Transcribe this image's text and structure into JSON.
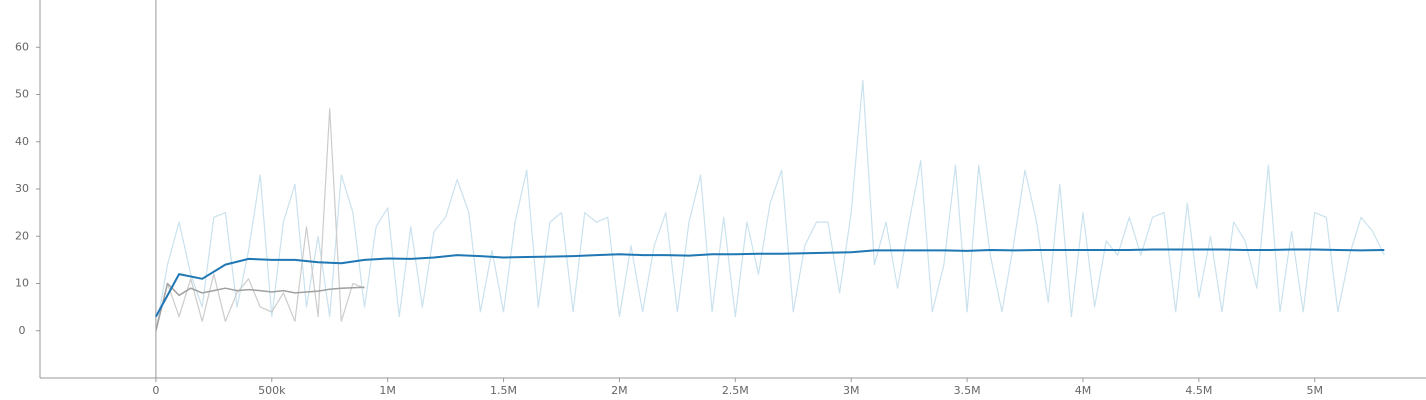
{
  "chart_data": {
    "type": "line",
    "xlim": [
      -500000,
      5480000
    ],
    "ylim": [
      -10,
      70
    ],
    "xticks": [
      0,
      {
        "value": 500000,
        "label": "500k"
      },
      {
        "value": 1000000,
        "label": "1M"
      },
      {
        "value": 1500000,
        "label": "1.5M"
      },
      {
        "value": 2000000,
        "label": "2M"
      },
      {
        "value": 2500000,
        "label": "2.5M"
      },
      {
        "value": 3000000,
        "label": "3M"
      },
      {
        "value": 3500000,
        "label": "3.5M"
      },
      {
        "value": 4000000,
        "label": "4M"
      },
      {
        "value": 4500000,
        "label": "4.5M"
      },
      {
        "value": 5000000,
        "label": "5M"
      }
    ],
    "yticks": [
      0,
      10,
      20,
      30,
      40,
      50,
      60
    ],
    "series": [
      {
        "color": "#a6cee3",
        "opacity": 0.6,
        "width": 1.2,
        "x": [
          0,
          50000,
          100000,
          150000,
          200000,
          250000,
          300000,
          350000,
          400000,
          450000,
          500000,
          550000,
          600000,
          650000,
          700000,
          750000,
          800000,
          850000,
          900000,
          950000,
          1000000,
          1050000,
          1100000,
          1150000,
          1200000,
          1250000,
          1300000,
          1350000,
          1400000,
          1450000,
          1500000,
          1550000,
          1600000,
          1650000,
          1700000,
          1750000,
          1800000,
          1850000,
          1900000,
          1950000,
          2000000,
          2050000,
          2100000,
          2150000,
          2200000,
          2250000,
          2300000,
          2350000,
          2400000,
          2450000,
          2500000,
          2550000,
          2600000,
          2650000,
          2700000,
          2750000,
          2800000,
          2850000,
          2900000,
          2950000,
          3000000,
          3050000,
          3100000,
          3150000,
          3200000,
          3250000,
          3300000,
          3350000,
          3400000,
          3450000,
          3500000,
          3550000,
          3600000,
          3650000,
          3700000,
          3750000,
          3800000,
          3850000,
          3900000,
          3950000,
          4000000,
          4050000,
          4100000,
          4150000,
          4200000,
          4250000,
          4300000,
          4350000,
          4400000,
          4450000,
          4500000,
          4550000,
          4600000,
          4650000,
          4700000,
          4750000,
          4800000,
          4850000,
          4900000,
          4950000,
          5000000,
          5050000,
          5100000,
          5150000,
          5200000,
          5250000,
          5300000
        ],
        "values": [
          0,
          14,
          23,
          12,
          5,
          24,
          25,
          5,
          17,
          33,
          3,
          23,
          31,
          5,
          20,
          3,
          33,
          25,
          5,
          22,
          26,
          3,
          22,
          5,
          21,
          24,
          32,
          25,
          4,
          17,
          4,
          23,
          34,
          5,
          23,
          25,
          4,
          25,
          23,
          24,
          3,
          18,
          4,
          18,
          25,
          4,
          23,
          33,
          4,
          24,
          3,
          23,
          12,
          27,
          34,
          4,
          18,
          23,
          23,
          8,
          25,
          53,
          14,
          23,
          9,
          23,
          36,
          4,
          14,
          35,
          4,
          35,
          16,
          4,
          18,
          34,
          23,
          6,
          31,
          3,
          25,
          5,
          19,
          16,
          24,
          16,
          24,
          25,
          4,
          27,
          7,
          20,
          4,
          23,
          19,
          9,
          35,
          4,
          21,
          4,
          25,
          24,
          4,
          16,
          24,
          21,
          16
        ]
      },
      {
        "color": "#cccccc",
        "opacity": 1,
        "width": 1.2,
        "x": [
          0,
          50000,
          100000,
          150000,
          200000,
          250000,
          300000,
          350000,
          400000,
          450000,
          500000,
          550000,
          600000,
          650000,
          700000,
          750000,
          800000,
          850000,
          900000
        ],
        "values": [
          0,
          10,
          3,
          11,
          2,
          12,
          2,
          8,
          11,
          5,
          4,
          8,
          2,
          22,
          3,
          47,
          2,
          10,
          9
        ]
      },
      {
        "color": "#a0a0a0",
        "opacity": 1,
        "width": 1.5,
        "x": [
          0,
          50000,
          100000,
          150000,
          200000,
          250000,
          300000,
          350000,
          400000,
          450000,
          500000,
          550000,
          600000,
          650000,
          700000,
          750000,
          800000,
          850000,
          900000
        ],
        "values": [
          0,
          10,
          7.5,
          9,
          8,
          8.5,
          9,
          8.5,
          8.7,
          8.5,
          8.2,
          8.5,
          8,
          8.2,
          8.4,
          8.8,
          9,
          9.1,
          9.2
        ]
      },
      {
        "color": "#1f77b4",
        "opacity": 1,
        "width": 2,
        "x": [
          0,
          100000,
          200000,
          300000,
          400000,
          500000,
          600000,
          700000,
          800000,
          900000,
          1000000,
          1100000,
          1200000,
          1300000,
          1400000,
          1500000,
          1600000,
          1700000,
          1800000,
          1900000,
          2000000,
          2100000,
          2200000,
          2300000,
          2400000,
          2500000,
          2600000,
          2700000,
          2800000,
          2900000,
          3000000,
          3100000,
          3200000,
          3300000,
          3400000,
          3500000,
          3600000,
          3700000,
          3800000,
          3900000,
          4000000,
          4100000,
          4200000,
          4300000,
          4400000,
          4500000,
          4600000,
          4700000,
          4800000,
          4900000,
          5000000,
          5100000,
          5200000,
          5300000
        ],
        "values": [
          3,
          12,
          11,
          14,
          15.2,
          15,
          15,
          14.5,
          14.3,
          15,
          15.3,
          15.2,
          15.5,
          16,
          15.8,
          15.5,
          15.6,
          15.7,
          15.8,
          16,
          16.2,
          16,
          16,
          15.9,
          16.2,
          16.2,
          16.3,
          16.3,
          16.4,
          16.5,
          16.6,
          17,
          17,
          17,
          17,
          16.9,
          17.1,
          17,
          17.1,
          17.1,
          17.1,
          17.1,
          17.1,
          17.2,
          17.2,
          17.2,
          17.2,
          17.1,
          17.1,
          17.2,
          17.2,
          17.1,
          17,
          17.1
        ]
      }
    ]
  }
}
